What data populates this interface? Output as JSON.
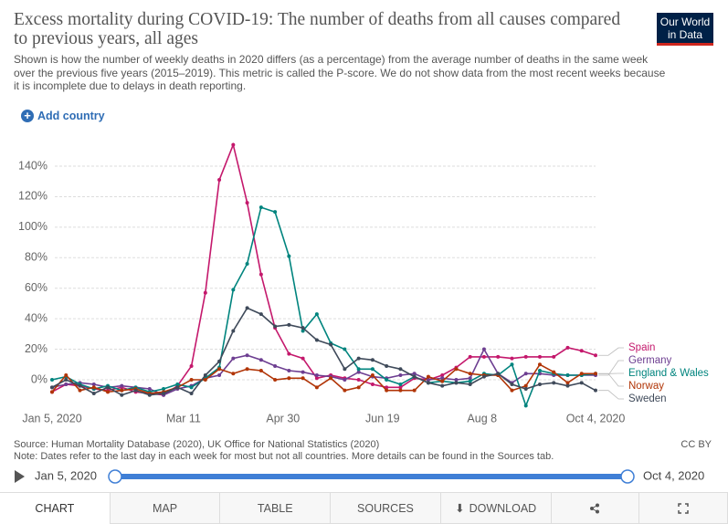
{
  "header": {
    "title": "Excess mortality during COVID-19: The number of deaths from all causes compared to previous years, all ages",
    "subtitle": "Shown is how the number of weekly deaths in 2020 differs (as a percentage) from the average number of deaths in the same week over the previous five years (2015–2019). This metric is called the P-score. We do not show data from the most recent weeks because it is incomplete due to delays in death reporting.",
    "logo": [
      "Our World",
      "in Data"
    ],
    "add_country": "Add country"
  },
  "chart_data": {
    "type": "line",
    "x": [
      "2020-01-05",
      "2020-01-12",
      "2020-01-19",
      "2020-01-26",
      "2020-02-02",
      "2020-02-09",
      "2020-02-16",
      "2020-02-23",
      "2020-03-01",
      "2020-03-08",
      "2020-03-15",
      "2020-03-22",
      "2020-03-29",
      "2020-04-05",
      "2020-04-12",
      "2020-04-19",
      "2020-04-26",
      "2020-05-03",
      "2020-05-10",
      "2020-05-17",
      "2020-05-24",
      "2020-05-31",
      "2020-06-07",
      "2020-06-14",
      "2020-06-21",
      "2020-06-28",
      "2020-07-05",
      "2020-07-12",
      "2020-07-19",
      "2020-07-26",
      "2020-08-02",
      "2020-08-09",
      "2020-08-16",
      "2020-08-23",
      "2020-08-30",
      "2020-09-06",
      "2020-09-13",
      "2020-09-20",
      "2020-09-27",
      "2020-10-04"
    ],
    "xlim": [
      "2020-01-05",
      "2020-10-04"
    ],
    "xticks": [
      {
        "value": "2020-01-05",
        "label": "Jan 5, 2020"
      },
      {
        "value": "2020-03-11",
        "label": "Mar 11"
      },
      {
        "value": "2020-04-30",
        "label": "Apr 30"
      },
      {
        "value": "2020-06-19",
        "label": "Jun 19"
      },
      {
        "value": "2020-08-08",
        "label": "Aug 8"
      },
      {
        "value": "2020-10-04",
        "label": "Oct 4, 2020"
      }
    ],
    "ylim": [
      -20,
      160
    ],
    "yticks": [
      {
        "value": 0,
        "label": "0%"
      },
      {
        "value": 20,
        "label": "20%"
      },
      {
        "value": 40,
        "label": "40%"
      },
      {
        "value": 60,
        "label": "60%"
      },
      {
        "value": 80,
        "label": "80%"
      },
      {
        "value": 100,
        "label": "100%"
      },
      {
        "value": 120,
        "label": "120%"
      },
      {
        "value": 140,
        "label": "140%"
      }
    ],
    "grid": true,
    "series": [
      {
        "name": "Spain",
        "color": "#c4186c",
        "values": [
          -8,
          -3,
          -4,
          -6,
          -7,
          -5,
          -8,
          -9,
          -10,
          -4,
          9,
          57,
          131,
          154,
          116,
          69,
          34,
          17,
          14,
          1,
          3,
          1,
          0,
          -3,
          -5,
          -5,
          1,
          0,
          3,
          8,
          15,
          15,
          15,
          14,
          15,
          15,
          15,
          21,
          19,
          16
        ]
      },
      {
        "name": "Germany",
        "color": "#6d3e91",
        "values": [
          -5,
          -3,
          -2,
          -3,
          -5,
          -4,
          -5,
          -6,
          -10,
          -6,
          -4,
          1,
          3,
          14,
          16,
          13,
          9,
          6,
          5,
          3,
          2,
          0,
          5,
          2,
          1,
          3,
          4,
          0,
          1,
          0,
          1,
          20,
          4,
          -2,
          4,
          4,
          3,
          3,
          3,
          3
        ]
      },
      {
        "name": "England & Wales",
        "color": "#00847e",
        "values": [
          0,
          2,
          -3,
          -6,
          -4,
          -7,
          -5,
          -8,
          -6,
          -3,
          -5,
          1,
          8,
          59,
          76,
          113,
          110,
          81,
          32,
          43,
          24,
          20,
          7,
          7,
          0,
          -3,
          2,
          -2,
          -1,
          -2,
          -1,
          4,
          3,
          10,
          -17,
          6,
          4,
          3,
          3,
          4
        ]
      },
      {
        "name": "Norway",
        "color": "#b13507",
        "values": [
          -8,
          3,
          -7,
          -5,
          -8,
          -7,
          -6,
          -9,
          -8,
          -5,
          0,
          0,
          7,
          4,
          7,
          6,
          0,
          1,
          1,
          -5,
          1,
          -7,
          -5,
          3,
          -7,
          -7,
          -7,
          2,
          -1,
          7,
          4,
          3,
          3,
          -7,
          -4,
          10,
          5,
          -2,
          4,
          4
        ]
      },
      {
        "name": "Sweden",
        "color": "#3f4a5a",
        "values": [
          -5,
          0,
          -4,
          -9,
          -5,
          -10,
          -7,
          -10,
          -9,
          -5,
          -9,
          3,
          12,
          32,
          47,
          43,
          35,
          36,
          34,
          26,
          23,
          7,
          14,
          13,
          9,
          7,
          2,
          -2,
          -4,
          -2,
          -3,
          2,
          4,
          -3,
          -6,
          -3,
          -2,
          -4,
          -2,
          -7
        ]
      }
    ]
  },
  "footer": {
    "source": "Source: Human Mortality Database (2020), UK Office for National Statistics (2020)",
    "note": "Note: Dates refer to the last day in each week for most but not all countries. More details can be found in the Sources tab.",
    "license": "CC BY"
  },
  "timeline": {
    "start": "Jan 5, 2020",
    "end": "Oct 4, 2020"
  },
  "tabs": [
    "CHART",
    "MAP",
    "TABLE",
    "SOURCES",
    "DOWNLOAD"
  ]
}
